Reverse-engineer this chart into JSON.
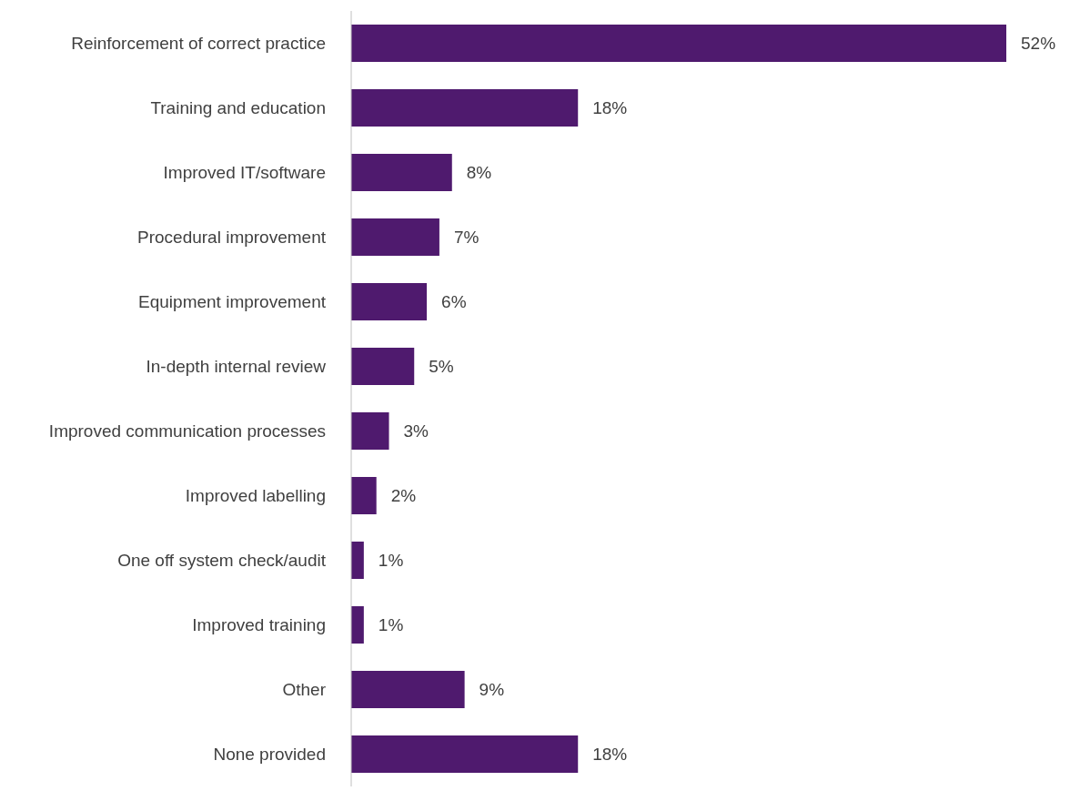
{
  "chart_data": {
    "type": "bar",
    "orientation": "horizontal",
    "categories": [
      "Reinforcement of correct practice",
      "Training and education",
      "Improved IT/software",
      "Procedural improvement",
      "Equipment improvement",
      "In-depth internal review",
      "Improved communication processes",
      "Improved labelling",
      "One off system check/audit",
      "Improved training",
      "Other",
      "None provided"
    ],
    "values": [
      52,
      18,
      8,
      7,
      6,
      5,
      3,
      2,
      1,
      1,
      9,
      18
    ],
    "value_labels": [
      "52%",
      "18%",
      "8%",
      "7%",
      "6%",
      "5%",
      "3%",
      "2%",
      "1%",
      "1%",
      "9%",
      "18%"
    ],
    "color": "#4f1a6e",
    "grid": false,
    "legend": false
  }
}
